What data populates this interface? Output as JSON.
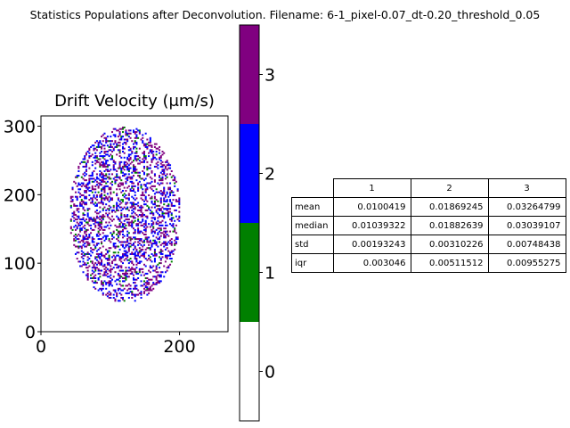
{
  "suptitle": "Statistics Populations after Deconvolution. Filename: 6-1_pixel-0.07_dt-0.20_threshold_0.05",
  "chart_data": [
    {
      "type": "heatmap",
      "title": "Drift Velocity (μm/s)",
      "xlim": [
        0,
        270
      ],
      "ylim": [
        0,
        315
      ],
      "xticks": [
        "0",
        "200"
      ],
      "yticks": [
        "0",
        "100",
        "200",
        "300"
      ],
      "x_tick_values": [
        0,
        200
      ],
      "y_tick_values": [
        0,
        100,
        200,
        300
      ],
      "grid": false,
      "description_classes": [
        0,
        1,
        2,
        3
      ],
      "class_colors": [
        "#ffffff",
        "#008000",
        "#0000ff",
        "#800080"
      ],
      "blob_region": {
        "x_center": 120,
        "y_center": 170,
        "x_half_width": 80,
        "y_half_height": 128
      }
    },
    {
      "type": "bar",
      "title": "",
      "colorbar_ticks": [
        "0",
        "1",
        "2",
        "3"
      ],
      "tick_values": [
        0,
        1,
        2,
        3
      ],
      "range": [
        -0.5,
        3.5
      ],
      "colors": [
        "#ffffff",
        "#008000",
        "#0000ff",
        "#800080"
      ]
    },
    {
      "type": "table",
      "columns": [
        "1",
        "2",
        "3"
      ],
      "rows": [
        {
          "label": "mean",
          "values": [
            "0.0100419",
            "0.01869245",
            "0.03264799"
          ]
        },
        {
          "label": "median",
          "values": [
            "0.01039322",
            "0.01882639",
            "0.03039107"
          ]
        },
        {
          "label": "std",
          "values": [
            "0.00193243",
            "0.00310226",
            "0.00748438"
          ]
        },
        {
          "label": "iqr",
          "values": [
            "0.003046",
            "0.00511512",
            "0.00955275"
          ]
        }
      ]
    }
  ]
}
